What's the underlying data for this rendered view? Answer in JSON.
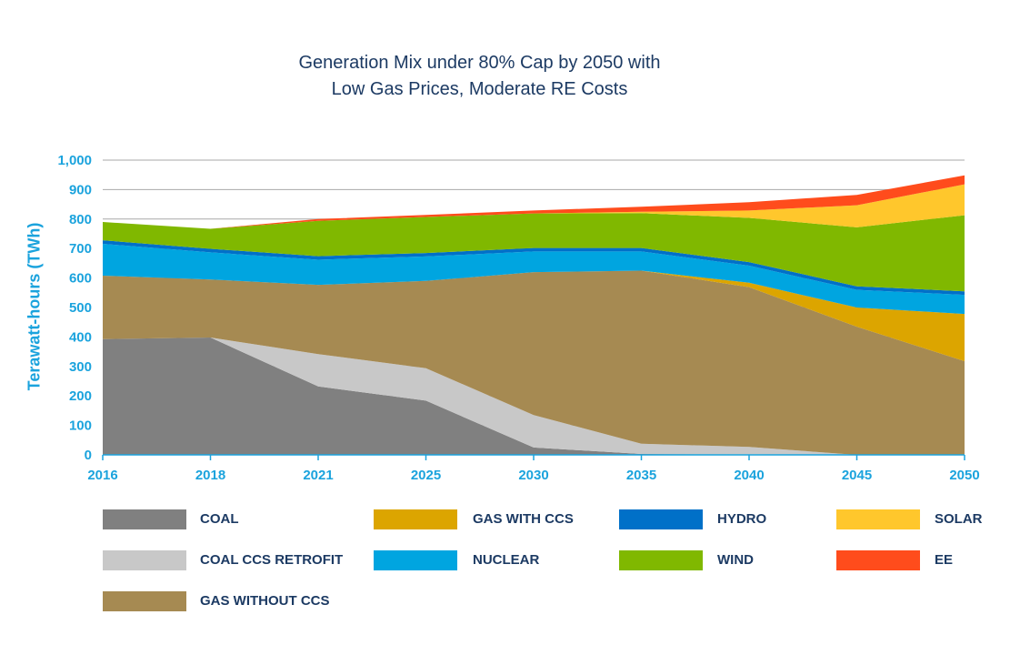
{
  "chart_data": {
    "type": "area",
    "stacked": true,
    "title": [
      "Generation Mix under 80% Cap by 2050 with",
      "Low Gas Prices, Moderate RE Costs"
    ],
    "ylabel": "Terawatt-hours (TWh)",
    "xlabel": "",
    "ylim": [
      0,
      1000
    ],
    "yticks": [
      "0",
      "100",
      "200",
      "300",
      "400",
      "500",
      "600",
      "700",
      "800",
      "900",
      "1,000"
    ],
    "ytick_values": [
      0,
      100,
      200,
      300,
      400,
      500,
      600,
      700,
      800,
      900,
      1000
    ],
    "categories": [
      "2016",
      "2018",
      "2021",
      "2025",
      "2030",
      "2035",
      "2040",
      "2045",
      "2050"
    ],
    "grid": "horizontal",
    "legend_position": "bottom",
    "series": [
      {
        "name": "COAL",
        "color": "#808080",
        "values": [
          393,
          398,
          232,
          184,
          25,
          3,
          2,
          0,
          0
        ]
      },
      {
        "name": "COAL CCS RETROFIT",
        "color": "#c8c8c8",
        "values": [
          0,
          0,
          110,
          110,
          110,
          35,
          25,
          0,
          0
        ]
      },
      {
        "name": "GAS WITHOUT CCS",
        "color": "#a68a52",
        "values": [
          215,
          197,
          235,
          296,
          485,
          587,
          542,
          435,
          318
        ]
      },
      {
        "name": "GAS WITH CCS",
        "color": "#dca500",
        "values": [
          0,
          0,
          0,
          0,
          0,
          0,
          15,
          65,
          160
        ]
      },
      {
        "name": "NUCLEAR",
        "color": "#00a5e0",
        "values": [
          108,
          92,
          85,
          83,
          70,
          65,
          58,
          60,
          65
        ]
      },
      {
        "name": "HYDRO",
        "color": "#0070c8",
        "values": [
          12,
          12,
          12,
          12,
          12,
          12,
          12,
          12,
          12
        ]
      },
      {
        "name": "WIND",
        "color": "#80b800",
        "values": [
          62,
          68,
          120,
          122,
          117,
          118,
          150,
          200,
          258
        ]
      },
      {
        "name": "SOLAR",
        "color": "#ffc72c",
        "values": [
          0,
          0,
          0,
          0,
          0,
          5,
          25,
          75,
          105
        ]
      },
      {
        "name": "EE",
        "color": "#ff4c1c",
        "values": [
          0,
          0,
          6,
          7,
          10,
          17,
          28,
          35,
          30
        ]
      }
    ]
  },
  "legend": [
    {
      "label": "COAL",
      "color": "#808080"
    },
    {
      "label": "GAS WITH CCS",
      "color": "#dca500"
    },
    {
      "label": "HYDRO",
      "color": "#0070c8"
    },
    {
      "label": "SOLAR",
      "color": "#ffc72c"
    },
    {
      "label": "COAL CCS RETROFIT",
      "color": "#c8c8c8"
    },
    {
      "label": "NUCLEAR",
      "color": "#00a5e0"
    },
    {
      "label": "WIND",
      "color": "#80b800"
    },
    {
      "label": "EE",
      "color": "#ff4c1c"
    },
    {
      "label": "GAS WITHOUT CCS",
      "color": "#a68a52"
    }
  ]
}
